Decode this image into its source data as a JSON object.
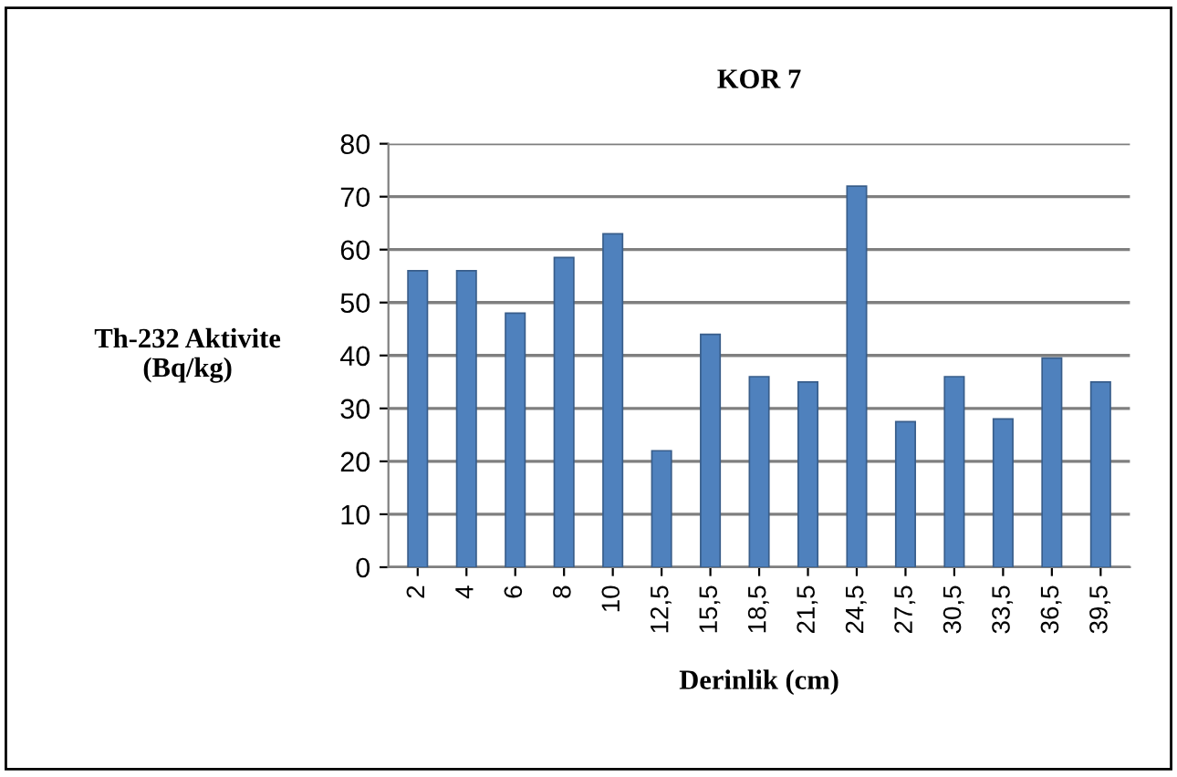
{
  "chart_data": {
    "type": "bar",
    "title": "KOR 7",
    "xlabel": "Derinlik (cm)",
    "ylabel": "Th-232 Aktivite\n(Bq/kg)",
    "categories": [
      "2",
      "4",
      "6",
      "8",
      "10",
      "12,5",
      "15,5",
      "18,5",
      "21,5",
      "24,5",
      "27,5",
      "30,5",
      "33,5",
      "36,5",
      "39,5"
    ],
    "values": [
      56,
      56,
      48,
      58.5,
      63,
      22,
      44,
      36,
      35,
      72,
      27.5,
      36,
      28,
      39.5,
      35
    ],
    "color": "#4f81bd",
    "ylim": [
      0,
      80
    ],
    "yticks": [
      0,
      10,
      20,
      30,
      40,
      50,
      60,
      70,
      80
    ],
    "grid": "y",
    "legend": false
  }
}
